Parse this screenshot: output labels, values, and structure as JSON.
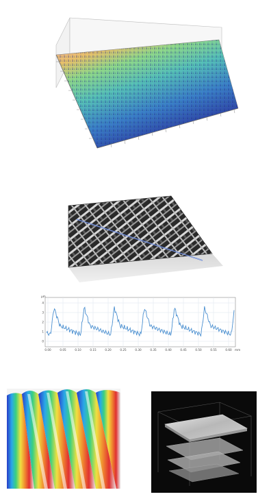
{
  "profile_plot": {
    "y_unit": "μm",
    "x_unit": "mm",
    "y_ticks": [
      "4",
      "3",
      "2",
      "1",
      "0"
    ],
    "x_ticks": [
      "0.00",
      "0.05",
      "0.10",
      "0.15",
      "0.20",
      "0.25",
      "0.30",
      "0.35",
      "0.40",
      "0.45",
      "0.50",
      "0.55",
      "0.60"
    ],
    "line_color": "#4a8fd0"
  },
  "colors": {
    "surface_high": "#f08a6a",
    "surface_mid": "#6fd0b0",
    "surface_low": "#3840a8",
    "background": "#ffffff"
  }
}
